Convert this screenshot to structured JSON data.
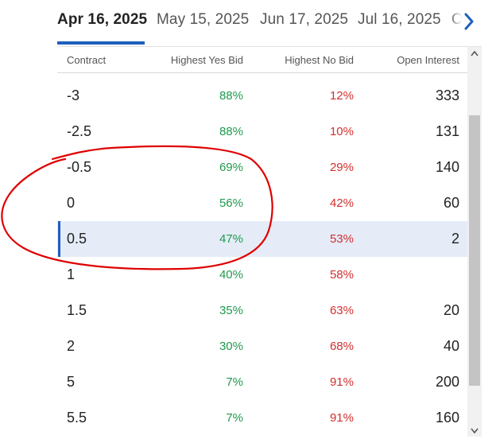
{
  "tabs": [
    {
      "label": "Apr 16, 2025",
      "active": true
    },
    {
      "label": "May 15, 2025",
      "active": false
    },
    {
      "label": "Jun 17, 2025",
      "active": false
    },
    {
      "label": "Jul 16, 2025",
      "active": false
    },
    {
      "label": "O",
      "active": false
    }
  ],
  "icons": {
    "next": "chevron-right-icon",
    "scroll_up": "chevron-up-icon",
    "scroll_down": "chevron-down-icon"
  },
  "colors": {
    "accent": "#1f5fbf",
    "yes": "#1f9a4d",
    "no": "#d32f2f",
    "selected_row": "#e5ecf8",
    "annotation": "#e00000"
  },
  "table": {
    "headers": {
      "contract": "Contract",
      "yes_bid": "Highest Yes Bid",
      "no_bid": "Highest No Bid",
      "open_interest": "Open Interest"
    },
    "rows": [
      {
        "contract": "-3",
        "yes": "88%",
        "no": "12%",
        "oi": "333"
      },
      {
        "contract": "-2.5",
        "yes": "88%",
        "no": "10%",
        "oi": "131"
      },
      {
        "contract": "-0.5",
        "yes": "69%",
        "no": "29%",
        "oi": "140"
      },
      {
        "contract": "0",
        "yes": "56%",
        "no": "42%",
        "oi": "60"
      },
      {
        "contract": "0.5",
        "yes": "47%",
        "no": "53%",
        "oi": "2",
        "selected": true
      },
      {
        "contract": "1",
        "yes": "40%",
        "no": "58%",
        "oi": ""
      },
      {
        "contract": "1.5",
        "yes": "35%",
        "no": "63%",
        "oi": "20"
      },
      {
        "contract": "2",
        "yes": "30%",
        "no": "68%",
        "oi": "40"
      },
      {
        "contract": "5",
        "yes": "7%",
        "no": "91%",
        "oi": "200"
      },
      {
        "contract": "5.5",
        "yes": "7%",
        "no": "91%",
        "oi": "160"
      }
    ]
  }
}
